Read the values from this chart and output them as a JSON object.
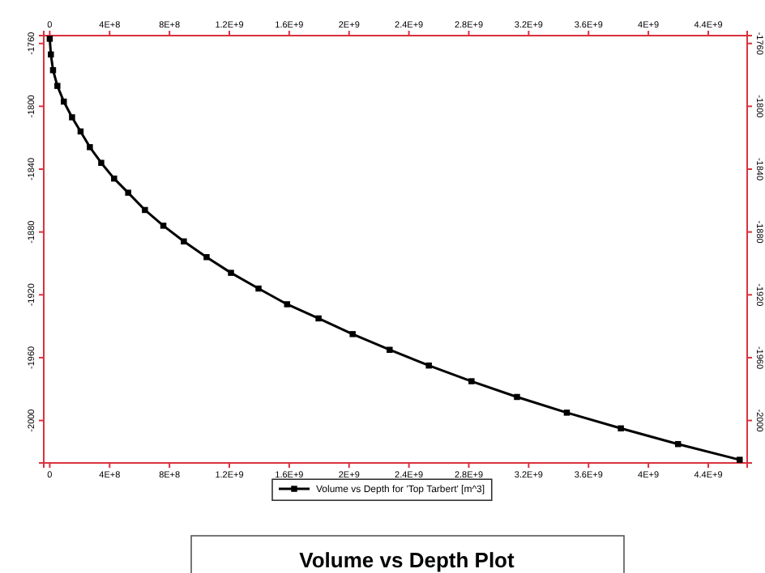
{
  "chart_data": {
    "type": "line",
    "title": "Volume vs Depth Plot",
    "x": [
      0,
      7600000.0,
      22000000.0,
      51000000.0,
      94000000.0,
      149000000.0,
      206000000.0,
      268000000.0,
      344000000.0,
      430000000.0,
      524000000.0,
      636000000.0,
      759000000.0,
      896000000.0,
      1048000000.0,
      1211000000.0,
      1395000000.0,
      1586000000.0,
      1796000000.0,
      2024000000.0,
      2271000000.0,
      2533000000.0,
      2818000000.0,
      3122000000.0,
      3455000000.0,
      3816000000.0,
      4198000000.0,
      4610000000.0
    ],
    "series": [
      {
        "name": "Volume vs Depth for 'Top Tarbert' [m^3]",
        "color": "#000000",
        "values": [
          -1757,
          -1767,
          -1777,
          -1787,
          -1797,
          -1807,
          -1816,
          -1826,
          -1836,
          -1846,
          -1855,
          -1866,
          -1876,
          -1886,
          -1896,
          -1906,
          -1916,
          -1926,
          -1935,
          -1945,
          -1955,
          -1965,
          -1975,
          -1985,
          -1995,
          -2005,
          -2015,
          -2025
        ]
      }
    ],
    "xlim": [
      -40000000.0,
      4660000000.0
    ],
    "ylim": [
      -2027,
      -1755
    ],
    "xticks": [
      0,
      {
        "value": 400000000.0,
        "label": "4E+8"
      },
      {
        "value": 800000000.0,
        "label": "8E+8"
      },
      {
        "value": 1200000000.0,
        "label": "1.2E+9"
      },
      {
        "value": 1600000000.0,
        "label": "1.6E+9"
      },
      {
        "value": 2000000000.0,
        "label": "2E+9"
      },
      {
        "value": 2400000000.0,
        "label": "2.4E+9"
      },
      {
        "value": 2800000000.0,
        "label": "2.8E+9"
      },
      {
        "value": 3200000000.0,
        "label": "3.2E+9"
      },
      {
        "value": 3600000000.0,
        "label": "3.6E+9"
      },
      {
        "value": 4000000000.0,
        "label": "4E+9"
      },
      {
        "value": 4400000000.0,
        "label": "4.4E+9"
      }
    ],
    "x2lim": [
      -40000000.0,
      4660000000.0
    ],
    "x2ticks": [
      0,
      {
        "value": 400000000.0,
        "label": "4E+8"
      },
      {
        "value": 800000000.0,
        "label": "8E+8"
      },
      {
        "value": 1200000000.0,
        "label": "1.2E+9"
      },
      {
        "value": 1600000000.0,
        "label": "1.6E+9"
      },
      {
        "value": 2000000000.0,
        "label": "2E+9"
      },
      {
        "value": 2400000000.0,
        "label": "2.4E+9"
      },
      {
        "value": 2800000000.0,
        "label": "2.8E+9"
      },
      {
        "value": 3200000000.0,
        "label": "3.2E+9"
      },
      {
        "value": 3600000000.0,
        "label": "3.6E+9"
      },
      {
        "value": 4000000000.0,
        "label": "4E+9"
      },
      {
        "value": 4400000000.0,
        "label": "4.4E+9"
      }
    ],
    "yticks": [
      -1760,
      -1800,
      -1840,
      -1880,
      -1920,
      -1960,
      -2000
    ],
    "y2lim": [
      -2027,
      -1755
    ],
    "y2ticks": [
      -1760,
      -1800,
      -1840,
      -1880,
      -1920,
      -1960,
      -2000
    ],
    "marker": "square",
    "line_style": "solid",
    "grid": false,
    "legend": "bottom"
  }
}
